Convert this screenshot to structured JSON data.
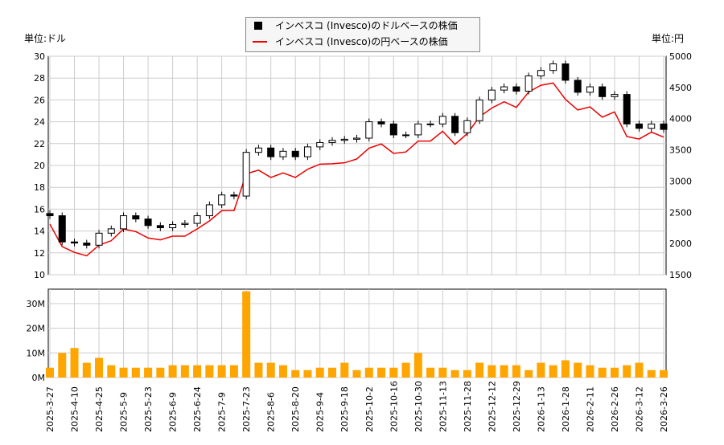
{
  "chart_data": {
    "type": "candlestick+line+bar",
    "left_unit": "単位:ドル",
    "right_unit": "単位:円",
    "legend": [
      "インベスコ (Invesco)のドルベースの株価",
      "インベスコ (Invesco)の円ベースの株価"
    ],
    "legend_placement": "top-center",
    "colors": {
      "usd": "#000000",
      "jpy": "#ee0000",
      "volume": "#ffa500"
    },
    "ylim_usd": [
      10,
      30
    ],
    "ylim_jpy": [
      1500,
      5000
    ],
    "ylim_volume": [
      0,
      30
    ],
    "yticks_usd": [
      "10",
      "12",
      "14",
      "16",
      "18",
      "20",
      "22",
      "24",
      "26",
      "28",
      "30"
    ],
    "yticks_jpy": [
      "1500",
      "2000",
      "2500",
      "3000",
      "3500",
      "4000",
      "4500",
      "5000"
    ],
    "yticks_volume": [
      "0M",
      "10M",
      "20M",
      "30M"
    ],
    "xticks": [
      "2025-3-27",
      "2025-4-10",
      "2025-4-25",
      "2025-5-9",
      "2025-5-23",
      "2025-6-9",
      "2025-6-24",
      "2025-7-9",
      "2025-7-23",
      "2025-8-6",
      "2025-8-20",
      "2025-9-4",
      "2025-9-18",
      "2025-10-2",
      "2025-10-16",
      "2025-10-30",
      "2025-11-13",
      "2025-11-28",
      "2025-12-12",
      "2025-12-29",
      "2026-1-13",
      "2026-1-28",
      "2026-2-11",
      "2026-2-26",
      "2026-3-12",
      "2026-3-26"
    ],
    "grid": true,
    "dates": [
      "2025-3-27",
      "2025-4-3",
      "2025-4-10",
      "2025-4-17",
      "2025-4-25",
      "2025-5-2",
      "2025-5-9",
      "2025-5-16",
      "2025-5-23",
      "2025-6-2",
      "2025-6-9",
      "2025-6-16",
      "2025-6-24",
      "2025-7-1",
      "2025-7-9",
      "2025-7-16",
      "2025-7-23",
      "2025-7-30",
      "2025-8-6",
      "2025-8-13",
      "2025-8-20",
      "2025-8-27",
      "2025-9-4",
      "2025-9-11",
      "2025-9-18",
      "2025-9-25",
      "2025-10-2",
      "2025-10-9",
      "2025-10-16",
      "2025-10-23",
      "2025-10-30",
      "2025-11-6",
      "2025-11-13",
      "2025-11-20",
      "2025-11-28",
      "2025-12-5",
      "2025-12-12",
      "2025-12-19",
      "2025-12-29",
      "2026-1-6",
      "2026-1-13",
      "2026-1-21",
      "2026-1-28",
      "2026-2-4",
      "2026-2-11",
      "2026-2-19",
      "2026-2-26",
      "2026-3-5",
      "2026-3-12",
      "2026-3-19",
      "2026-3-26"
    ],
    "close_usd": [
      15.4,
      13.0,
      12.9,
      12.7,
      13.8,
      14.2,
      15.4,
      15.1,
      14.5,
      14.3,
      14.6,
      14.7,
      15.4,
      16.4,
      17.3,
      17.2,
      21.2,
      21.6,
      20.8,
      21.3,
      20.8,
      21.7,
      22.1,
      22.3,
      22.4,
      22.5,
      24.0,
      23.8,
      22.8,
      22.8,
      23.8,
      23.8,
      24.5,
      23.0,
      24.1,
      26.0,
      26.9,
      27.2,
      26.8,
      28.2,
      28.7,
      29.3,
      27.8,
      26.7,
      27.2,
      26.3,
      26.5,
      23.8,
      23.4,
      23.8,
      23.3
    ],
    "close_jpy": [
      2310,
      1950,
      1858,
      1803,
      1973,
      2045,
      2233,
      2190,
      2088,
      2059,
      2117,
      2117,
      2233,
      2362,
      2526,
      2528,
      3116,
      3175,
      3058,
      3131,
      3058,
      3190,
      3271,
      3278,
      3293,
      3353,
      3528,
      3594,
      3443,
      3466,
      3641,
      3641,
      3798,
      3588,
      3760,
      4030,
      4170,
      4270,
      4181,
      4427,
      4535,
      4571,
      4309,
      4139,
      4189,
      4024,
      4108,
      3713,
      3674,
      3784,
      3705
    ],
    "volume_m": [
      4,
      10,
      12,
      6,
      8,
      5,
      4,
      4,
      4,
      4,
      5,
      5,
      5,
      5,
      5,
      5,
      35,
      6,
      6,
      5,
      3,
      3,
      4,
      4,
      6,
      3,
      4,
      4,
      4,
      6,
      10,
      4,
      4,
      3,
      3,
      6,
      5,
      5,
      5,
      3,
      6,
      5,
      7,
      6,
      5,
      4,
      4,
      5,
      6,
      3,
      3
    ]
  }
}
